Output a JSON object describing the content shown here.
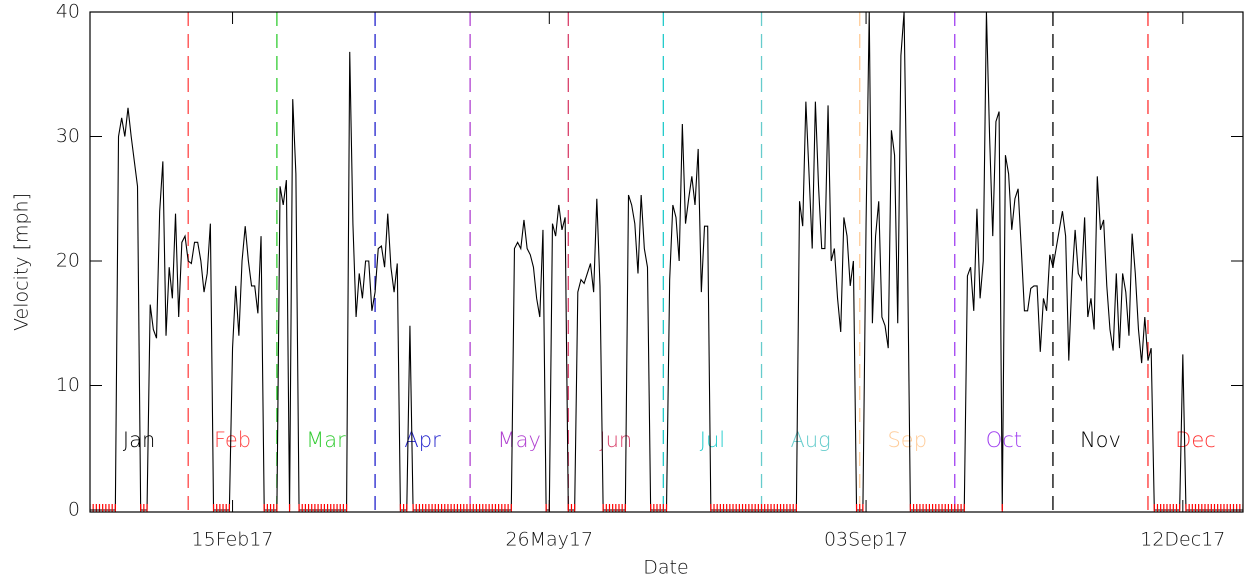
{
  "chart_data": {
    "type": "line",
    "x_label": "Date",
    "y_label": "Velocity [mph]",
    "xlim": [
      1,
      365
    ],
    "ylim": [
      0,
      40
    ],
    "xticks": [
      {
        "value": 46,
        "label": "15Feb17"
      },
      {
        "value": 146,
        "label": "26May17"
      },
      {
        "value": 246,
        "label": "03Sep17"
      },
      {
        "value": 346,
        "label": "12Dec17"
      }
    ],
    "yticks": [
      0,
      10,
      20,
      30,
      40
    ],
    "line_color": "#000000",
    "zero_color": "#ff0000",
    "months": [
      {
        "label": "Jan",
        "start": 1,
        "color": "#000000"
      },
      {
        "label": "Feb",
        "start": 32,
        "color": "#ff4444"
      },
      {
        "label": "Mar",
        "start": 60,
        "color": "#33cc33"
      },
      {
        "label": "Apr",
        "start": 91,
        "color": "#2222cc"
      },
      {
        "label": "May",
        "start": 121,
        "color": "#b040d0"
      },
      {
        "label": "Jun",
        "start": 152,
        "color": "#d8406a"
      },
      {
        "label": "Jul",
        "start": 182,
        "color": "#22cccc"
      },
      {
        "label": "Aug",
        "start": 213,
        "color": "#66cccc"
      },
      {
        "label": "Sep",
        "start": 244,
        "color": "#ffcc99"
      },
      {
        "label": "Oct",
        "start": 274,
        "color": "#a040f0"
      },
      {
        "label": "Nov",
        "start": 305,
        "color": "#000000"
      },
      {
        "label": "Dec",
        "start": 335,
        "color": "#ff3333"
      }
    ],
    "x": [
      1,
      2,
      3,
      4,
      5,
      6,
      7,
      8,
      9,
      10,
      11,
      12,
      13,
      14,
      15,
      16,
      17,
      18,
      19,
      20,
      21,
      22,
      23,
      24,
      25,
      26,
      27,
      28,
      29,
      30,
      31,
      32,
      33,
      34,
      35,
      36,
      37,
      38,
      39,
      40,
      41,
      42,
      43,
      44,
      45,
      46,
      47,
      48,
      49,
      50,
      51,
      52,
      53,
      54,
      55,
      56,
      57,
      58,
      59,
      60,
      61,
      62,
      63,
      64,
      65,
      66,
      67,
      68,
      69,
      70,
      71,
      72,
      73,
      74,
      75,
      76,
      77,
      78,
      79,
      80,
      81,
      82,
      83,
      84,
      85,
      86,
      87,
      88,
      89,
      90,
      91,
      92,
      93,
      94,
      95,
      96,
      97,
      98,
      99,
      100,
      101,
      102,
      103,
      104,
      105,
      106,
      107,
      108,
      109,
      110,
      111,
      112,
      113,
      114,
      115,
      116,
      117,
      118,
      119,
      120,
      121,
      122,
      123,
      124,
      125,
      126,
      127,
      128,
      129,
      130,
      131,
      132,
      133,
      134,
      135,
      136,
      137,
      138,
      139,
      140,
      141,
      142,
      143,
      144,
      145,
      146,
      147,
      148,
      149,
      150,
      151,
      152,
      153,
      154,
      155,
      156,
      157,
      158,
      159,
      160,
      161,
      162,
      163,
      164,
      165,
      166,
      167,
      168,
      169,
      170,
      171,
      172,
      173,
      174,
      175,
      176,
      177,
      178,
      179,
      180,
      181,
      182,
      183,
      184,
      185,
      186,
      187,
      188,
      189,
      190,
      191,
      192,
      193,
      194,
      195,
      196,
      197,
      198,
      199,
      200,
      201,
      202,
      203,
      204,
      205,
      206,
      207,
      208,
      209,
      210,
      211,
      212,
      213,
      214,
      215,
      216,
      217,
      218,
      219,
      220,
      221,
      222,
      223,
      224,
      225,
      226,
      227,
      228,
      229,
      230,
      231,
      232,
      233,
      234,
      235,
      236,
      237,
      238,
      239,
      240,
      241,
      242,
      243,
      244,
      245,
      246,
      247,
      248,
      249,
      250,
      251,
      252,
      253,
      254,
      255,
      256,
      257,
      258,
      259,
      260,
      261,
      262,
      263,
      264,
      265,
      266,
      267,
      268,
      269,
      270,
      271,
      272,
      273,
      274,
      275,
      276,
      277,
      278,
      279,
      280,
      281,
      282,
      283,
      284,
      285,
      286,
      287,
      288,
      289,
      290,
      291,
      292,
      293,
      294,
      295,
      296,
      297,
      298,
      299,
      300,
      301,
      302,
      303,
      304,
      305,
      306,
      307,
      308,
      309,
      310,
      311,
      312,
      313,
      314,
      315,
      316,
      317,
      318,
      319,
      320,
      321,
      322,
      323,
      324,
      325,
      326,
      327,
      328,
      329,
      330,
      331,
      332,
      333,
      334,
      335,
      336,
      337,
      338,
      339,
      340,
      341,
      342,
      343,
      344,
      345,
      346,
      347,
      348,
      349,
      350,
      351,
      352,
      353,
      354,
      355,
      356,
      357,
      358,
      359,
      360,
      361,
      362,
      363,
      364,
      365
    ],
    "values": [
      0,
      0,
      0,
      0,
      0,
      0,
      0,
      0,
      0,
      30,
      31.5,
      30,
      32.3,
      30,
      28,
      26,
      0,
      0,
      0,
      16.5,
      14.5,
      13.8,
      24,
      28,
      14,
      19.5,
      17,
      23.8,
      15.5,
      21.5,
      22,
      20,
      19.8,
      21.5,
      21.5,
      20,
      17.5,
      19,
      23,
      0,
      0,
      0,
      0,
      0,
      0,
      13,
      18,
      14,
      20,
      22.8,
      20,
      18,
      18,
      15.8,
      22,
      0,
      0,
      0,
      0,
      0,
      26,
      24.5,
      26.5,
      0,
      33,
      27,
      0,
      0,
      0,
      0,
      0,
      0,
      0,
      0,
      0,
      0,
      0,
      0,
      0,
      0,
      0,
      0,
      36.8,
      23,
      15.5,
      19,
      17,
      20,
      20,
      16,
      17.5,
      21,
      21.2,
      19.5,
      23.8,
      19.5,
      17.5,
      19.8,
      0,
      0,
      0,
      14.8,
      0,
      0,
      0,
      0,
      0,
      0,
      0,
      0,
      0,
      0,
      0,
      0,
      0,
      0,
      0,
      0,
      0,
      0,
      0,
      0,
      0,
      0,
      0,
      0,
      0,
      0,
      0,
      0,
      0,
      0,
      0,
      0,
      21,
      21.5,
      21,
      23.3,
      21,
      20.5,
      19.5,
      17,
      15.5,
      22.5,
      0,
      0,
      23,
      22,
      24.5,
      22.5,
      23.5,
      0,
      0,
      0,
      17.5,
      18.5,
      18.2,
      19,
      19.8,
      17.5,
      25,
      18,
      0,
      0,
      0,
      0,
      0,
      0,
      0,
      0,
      25.3,
      24.5,
      23,
      19,
      25.3,
      21,
      19.5,
      0,
      0,
      0,
      0,
      0,
      0,
      18.5,
      24.5,
      23.5,
      20,
      31,
      23,
      25,
      26.8,
      24.5,
      29,
      17.5,
      22.8,
      22.8,
      0,
      0,
      0,
      0,
      0,
      0,
      0,
      0,
      0,
      0,
      0,
      0,
      0,
      0,
      0,
      0,
      0,
      0,
      0,
      0,
      0,
      0,
      0,
      0,
      0,
      0,
      0,
      0,
      24.8,
      22.8,
      32.8,
      27,
      21,
      32.8,
      26,
      21,
      21,
      32.5,
      20,
      21,
      17,
      14.3,
      23.5,
      22,
      18,
      20,
      0,
      0,
      0,
      23,
      40,
      15,
      22,
      24.8,
      15.5,
      14.8,
      13,
      30.5,
      28.5,
      15,
      36.5,
      40,
      22.5,
      0,
      0,
      0,
      0,
      0,
      0,
      0,
      0,
      0,
      0,
      0,
      0,
      0,
      0,
      0,
      0,
      0,
      0,
      18.8,
      19.5,
      16,
      24.2,
      17,
      20,
      40,
      30,
      22,
      31.2,
      32,
      0,
      28.5,
      27,
      22.5,
      25,
      25.8,
      21,
      16,
      16,
      17.8,
      18,
      18,
      12.7,
      17,
      16,
      20.5,
      19.5,
      21,
      22.5,
      24,
      22,
      12,
      18.5,
      22.5,
      19,
      18.5,
      23.5,
      15.5,
      17,
      14.5,
      26.8,
      22.5,
      23.3,
      18,
      14.5,
      12.8,
      19,
      13,
      19,
      17.5,
      14,
      22.2,
      19,
      14.5,
      11.8,
      15.5,
      12,
      13,
      0,
      0,
      0,
      0,
      0,
      0,
      0,
      0,
      0,
      12.5,
      0,
      0,
      0,
      0,
      0,
      0,
      0,
      0,
      0,
      0,
      0,
      0,
      0,
      0,
      0,
      0,
      0,
      0,
      0
    ]
  }
}
